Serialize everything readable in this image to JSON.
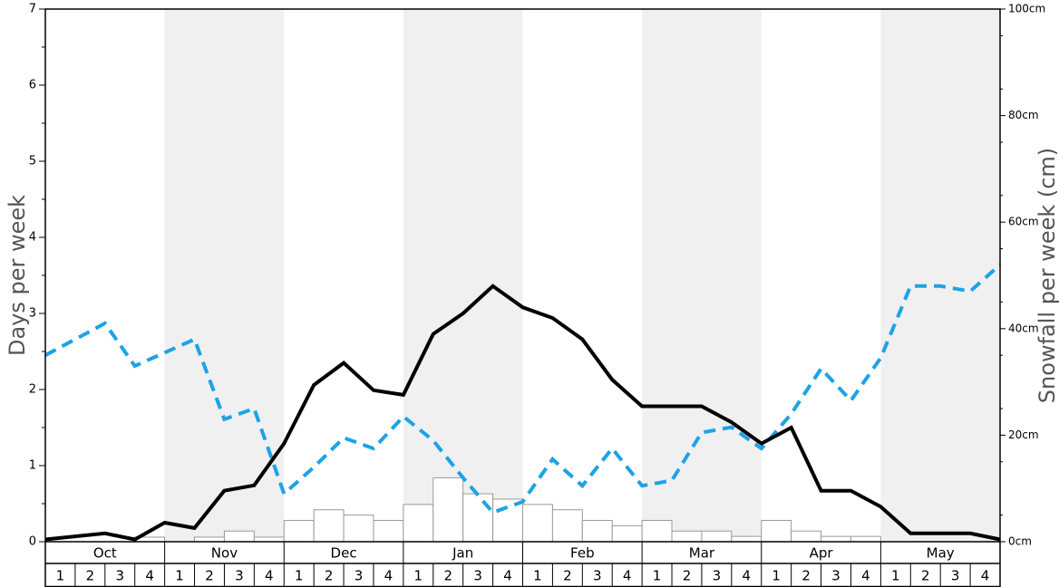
{
  "chart_data": {
    "type": "bar+line",
    "months": [
      "Oct",
      "Nov",
      "Dec",
      "Jan",
      "Feb",
      "Mar",
      "Apr",
      "May"
    ],
    "weeks": [
      "1",
      "2",
      "3",
      "4"
    ],
    "y_left": {
      "label": "Days per week",
      "min": 0,
      "max": 7,
      "ticks": [
        "0",
        "1",
        "2",
        "3",
        "4",
        "5",
        "6",
        "7"
      ]
    },
    "y_right": {
      "label": "Snowfall per week (cm)",
      "min": 0,
      "max": 100,
      "ticks": [
        "0cm",
        "20cm",
        "40cm",
        "60cm",
        "80cm",
        "100cm"
      ]
    },
    "colors": {
      "snow_line": "#000000",
      "dashed_line": "#1ca3e6",
      "bars": "#ffffff",
      "bar_edge": "#999999",
      "shade": "#f0f0f0"
    },
    "series": [
      {
        "style": "bar",
        "axis": "left",
        "values": [
          0,
          0,
          0,
          0.06,
          0,
          0.06,
          0.14,
          0.06,
          0.28,
          0.42,
          0.35,
          0.28,
          0.49,
          0.84,
          0.63,
          0.56,
          0.49,
          0.42,
          0.28,
          0.21,
          0.28,
          0.14,
          0.14,
          0.07,
          0.28,
          0.14,
          0.07,
          0.07,
          0,
          0,
          0,
          0
        ]
      },
      {
        "style": "solid-line",
        "axis": "left",
        "values": [
          0.03,
          0.07,
          0.11,
          0.03,
          0.25,
          0.18,
          0.67,
          0.74,
          1.29,
          2.06,
          2.35,
          1.99,
          1.93,
          2.73,
          3.0,
          3.36,
          3.08,
          2.94,
          2.66,
          2.13,
          1.78,
          1.78,
          1.78,
          1.57,
          1.29,
          1.5,
          0.67,
          0.67,
          0.46,
          0.11,
          0.11,
          0.11,
          0.03
        ]
      },
      {
        "style": "dashed-line",
        "axis": "right",
        "values": [
          35.0,
          38.0,
          41.0,
          33.0,
          35.5,
          38.0,
          23.0,
          25.0,
          9.0,
          14.0,
          19.5,
          17.5,
          23.5,
          19.0,
          12.0,
          5.5,
          7.5,
          15.5,
          10.5,
          17.5,
          10.5,
          11.5,
          20.5,
          21.5,
          17.5,
          24.0,
          32.5,
          26.5,
          34.5,
          48.0,
          48.0,
          47.0,
          52.0
        ]
      }
    ]
  }
}
